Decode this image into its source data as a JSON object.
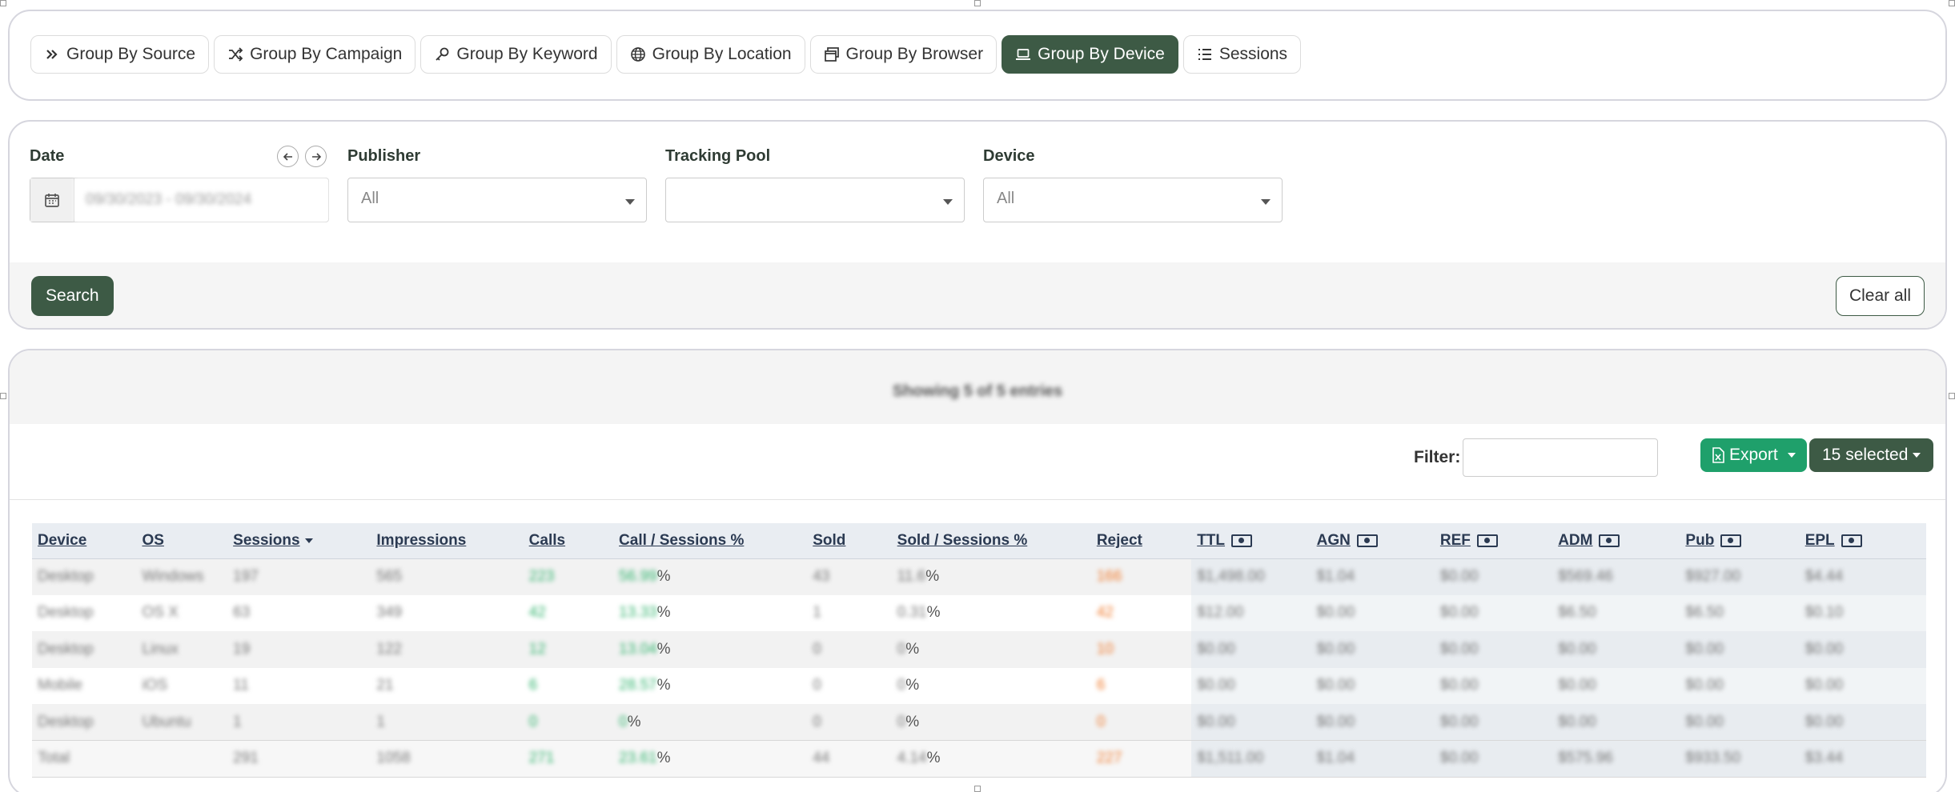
{
  "tabs": [
    {
      "label": "Group By Source",
      "icon": "double-chevron-right-icon",
      "active": false
    },
    {
      "label": "Group By Campaign",
      "icon": "shuffle-icon",
      "active": false
    },
    {
      "label": "Group By Keyword",
      "icon": "key-icon",
      "active": false
    },
    {
      "label": "Group By Location",
      "icon": "globe-icon",
      "active": false
    },
    {
      "label": "Group By Browser",
      "icon": "browser-windows-icon",
      "active": false
    },
    {
      "label": "Group By Device",
      "icon": "laptop-icon",
      "active": true
    },
    {
      "label": "Sessions",
      "icon": "list-icon",
      "active": false
    }
  ],
  "filters": {
    "date_label": "Date",
    "date_value": "09/30/2023 - 09/30/2024",
    "publisher_label": "Publisher",
    "publisher_value": "All",
    "tracking_pool_label": "Tracking Pool",
    "tracking_pool_value": "",
    "device_label": "Device",
    "device_value": "All",
    "search_label": "Search",
    "clear_label": "Clear all"
  },
  "table_toolbar": {
    "showing": "Showing 5 of 5 entries",
    "filter_label": "Filter:",
    "filter_value": "",
    "export_label": "Export",
    "selected_label": "15 selected"
  },
  "table": {
    "columns": [
      "Device",
      "OS",
      "Sessions",
      "Impressions",
      "Calls",
      "Call / Sessions %",
      "Sold",
      "Sold / Sessions %",
      "Reject",
      "TTL",
      "AGN",
      "REF",
      "ADM",
      "Pub",
      "EPL"
    ],
    "rows": [
      [
        "Desktop",
        "Windows",
        "197",
        "565",
        "223",
        "56.99",
        "43",
        "11.6",
        "166",
        "$1,498.00",
        "$1.04",
        "$0.00",
        "$569.46",
        "$927.00",
        "$4.44"
      ],
      [
        "Desktop",
        "OS X",
        "63",
        "349",
        "42",
        "13.33",
        "1",
        "0.31",
        "42",
        "$12.00",
        "$0.00",
        "$0.00",
        "$6.50",
        "$6.50",
        "$0.10"
      ],
      [
        "Desktop",
        "Linux",
        "19",
        "122",
        "12",
        "13.04",
        "0",
        "0",
        "10",
        "$0.00",
        "$0.00",
        "$0.00",
        "$0.00",
        "$0.00",
        "$0.00"
      ],
      [
        "Mobile",
        "iOS",
        "11",
        "21",
        "6",
        "28.57",
        "0",
        "0",
        "6",
        "$0.00",
        "$0.00",
        "$0.00",
        "$0.00",
        "$0.00",
        "$0.00"
      ],
      [
        "Desktop",
        "Ubuntu",
        "1",
        "1",
        "0",
        "0",
        "0",
        "0",
        "0",
        "$0.00",
        "$0.00",
        "$0.00",
        "$0.00",
        "$0.00",
        "$0.00"
      ]
    ],
    "total": [
      "Total",
      "",
      "291",
      "1058",
      "271",
      "23.61",
      "44",
      "4.14",
      "227",
      "$1,511.00",
      "$1.04",
      "$0.00",
      "$575.96",
      "$933.50",
      "$3.44"
    ],
    "percent_sign": "%"
  },
  "colors": {
    "accent": "#3d5a45",
    "export": "#1fa06b",
    "calls": "#2fb36c",
    "reject": "#f07a2c",
    "header_text": "#2b3a52"
  }
}
